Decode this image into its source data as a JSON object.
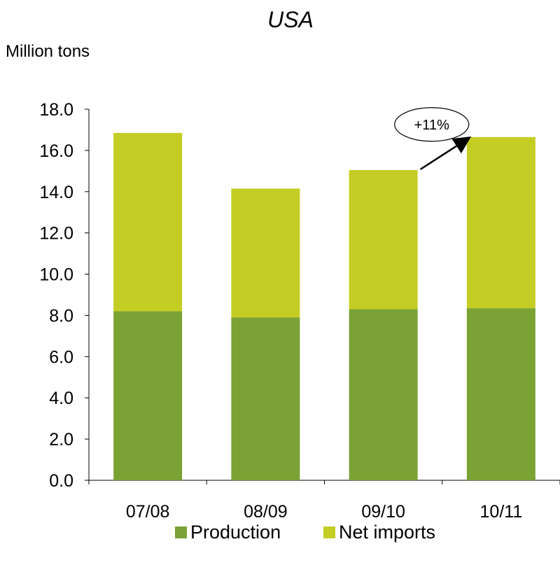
{
  "chart_data": {
    "type": "bar",
    "stacked": true,
    "title": "USA",
    "ylabel": "Million tons",
    "xlabel": "",
    "ylim": [
      0,
      18
    ],
    "y_ticks": [
      "0.0",
      "2.0",
      "4.0",
      "6.0",
      "8.0",
      "10.0",
      "12.0",
      "14.0",
      "16.0",
      "18.0"
    ],
    "categories": [
      "07/08",
      "08/09",
      "09/10",
      "10/11"
    ],
    "series": [
      {
        "name": "Production",
        "color": "#7aa234",
        "values": [
          8.2,
          7.9,
          8.3,
          8.35
        ]
      },
      {
        "name": "Net imports",
        "color": "#c4cd24",
        "values": [
          8.65,
          6.25,
          6.75,
          8.3
        ]
      }
    ],
    "grid": false,
    "legend": "bottom",
    "annotation": {
      "text": "+11%",
      "from_category": "09/10",
      "to_category": "10/11"
    }
  }
}
